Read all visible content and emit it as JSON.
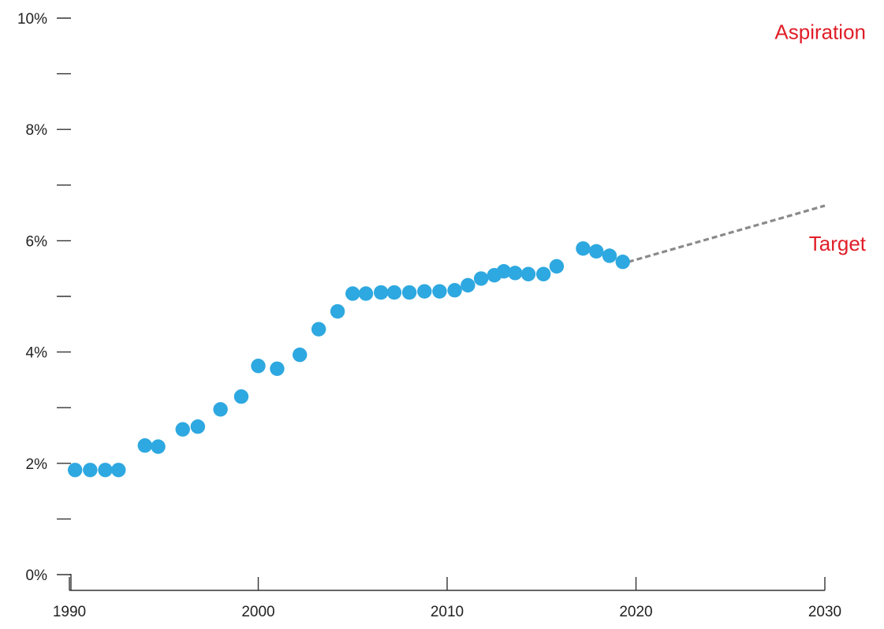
{
  "chart_data": {
    "type": "scatter",
    "title": "",
    "xlabel": "",
    "ylabel": "",
    "xlim": [
      1990,
      2030
    ],
    "ylim": [
      0,
      10
    ],
    "x_ticks": [
      1990,
      2000,
      2010,
      2020,
      2030
    ],
    "x_tick_labels": [
      "1990",
      "2000",
      "2010",
      "2020",
      "2030"
    ],
    "y_ticks": [
      0,
      1,
      2,
      3,
      4,
      5,
      6,
      7,
      8,
      9,
      10
    ],
    "y_tick_labels": [
      "0%",
      "",
      "2%",
      "",
      "4%",
      "",
      "6%",
      "",
      "8%",
      "",
      "10%"
    ],
    "grid": false,
    "colors": {
      "points": "#2ea8e0",
      "projection": "#8a8a8a",
      "annotation": "#e01e28"
    },
    "series": [
      {
        "type": "scatter",
        "x": [
          1990.3,
          1991.1,
          1991.9,
          1992.6,
          1994.0,
          1994.7,
          1996.0,
          1996.8,
          1998.0,
          1999.1,
          2000.0,
          2001.0,
          2002.2,
          2003.2,
          2004.2,
          2005.0,
          2005.7,
          2006.5,
          2007.2,
          2008.0,
          2008.8,
          2009.6,
          2010.4,
          2011.1,
          2011.8,
          2012.5,
          2013.0,
          2013.6,
          2014.3,
          2015.1,
          2015.8,
          2017.2,
          2017.9,
          2018.6,
          2019.3
        ],
        "values": [
          1.88,
          1.88,
          1.88,
          1.88,
          2.32,
          2.3,
          2.61,
          2.66,
          2.97,
          3.2,
          3.75,
          3.7,
          3.95,
          4.41,
          4.73,
          5.05,
          5.05,
          5.07,
          5.07,
          5.07,
          5.09,
          5.09,
          5.11,
          5.2,
          5.32,
          5.38,
          5.45,
          5.42,
          5.4,
          5.4,
          5.54,
          5.86,
          5.81,
          5.73,
          5.62
        ]
      },
      {
        "type": "line",
        "style": "dashed",
        "x": [
          2019.6,
          2030
        ],
        "values": [
          5.62,
          6.63
        ]
      }
    ],
    "annotations": [
      {
        "text": "Aspiration",
        "x": 2029.5,
        "y": 9.75
      },
      {
        "text": "Target",
        "x": 2029.5,
        "y": 5.95
      }
    ]
  }
}
